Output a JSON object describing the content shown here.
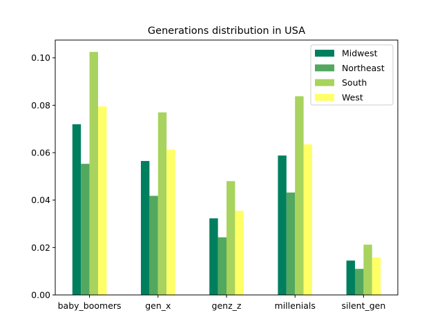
{
  "chart_data": {
    "type": "bar",
    "title": "Generations distribution in USA",
    "xlabel": "",
    "ylabel": "",
    "categories": [
      "baby_boomers",
      "gen_x",
      "genz_z",
      "millenials",
      "silent_gen"
    ],
    "ylim": [
      0,
      0.1075
    ],
    "yticks": [
      "0.00",
      "0.02",
      "0.04",
      "0.06",
      "0.08",
      "0.10"
    ],
    "grid": false,
    "legend_position": "top-right",
    "series": [
      {
        "name": "Midwest",
        "color": "#007f5f",
        "values": [
          0.072,
          0.0565,
          0.0323,
          0.0588,
          0.0145
        ]
      },
      {
        "name": "Northeast",
        "color": "#52a85f",
        "values": [
          0.0553,
          0.0418,
          0.0243,
          0.0432,
          0.011
        ]
      },
      {
        "name": "South",
        "color": "#a8d35f",
        "values": [
          0.1025,
          0.077,
          0.048,
          0.0838,
          0.0212
        ]
      },
      {
        "name": "West",
        "color": "#ffff66",
        "values": [
          0.0795,
          0.0613,
          0.0355,
          0.0635,
          0.0158
        ]
      }
    ]
  }
}
